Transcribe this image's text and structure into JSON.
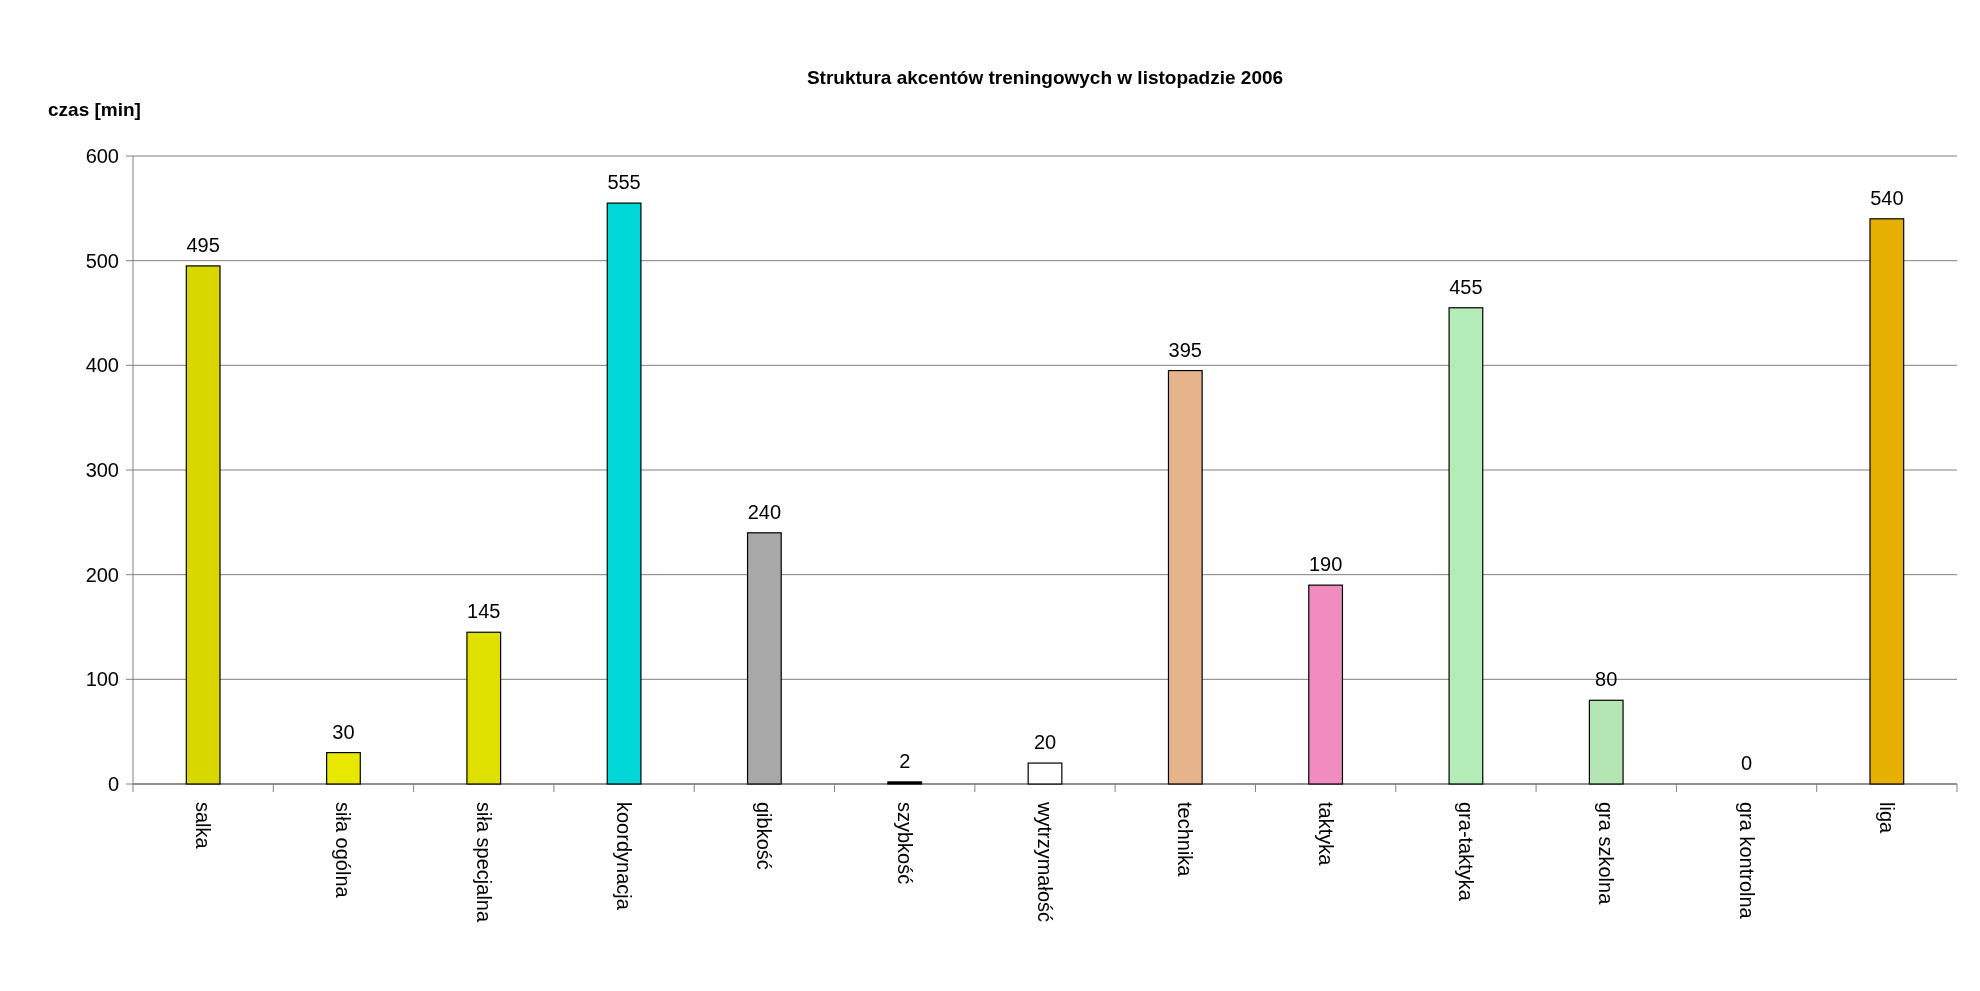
{
  "chart_data": {
    "type": "bar",
    "title": "Struktura akcentów treningowych w  listopadzie 2006",
    "ylabel": "czas [min]",
    "categories": [
      "salka",
      "siła ogólna",
      "siła specjalna",
      "koordynacja",
      "gibkość",
      "szybkość",
      "wytrzymałość",
      "technika",
      "taktyka",
      "gra-taktyka",
      "gra szkolna",
      "gra kontrolna",
      "liga"
    ],
    "values": [
      495,
      30,
      145,
      555,
      240,
      2,
      20,
      395,
      190,
      455,
      80,
      0,
      540
    ],
    "colors": [
      "#d8d800",
      "#e8e800",
      "#e0e000",
      "#00d8d8",
      "#a8a8a8",
      "#000000",
      "#ffffff",
      "#e6b48a",
      "#f08cc0",
      "#b4ecb8",
      "#b4e6b4",
      "#ffffff",
      "#e6b000"
    ],
    "ylim": [
      0,
      600
    ],
    "yticks": [
      0,
      100,
      200,
      300,
      400,
      500,
      600
    ],
    "grid": "y",
    "data_labels": true
  }
}
